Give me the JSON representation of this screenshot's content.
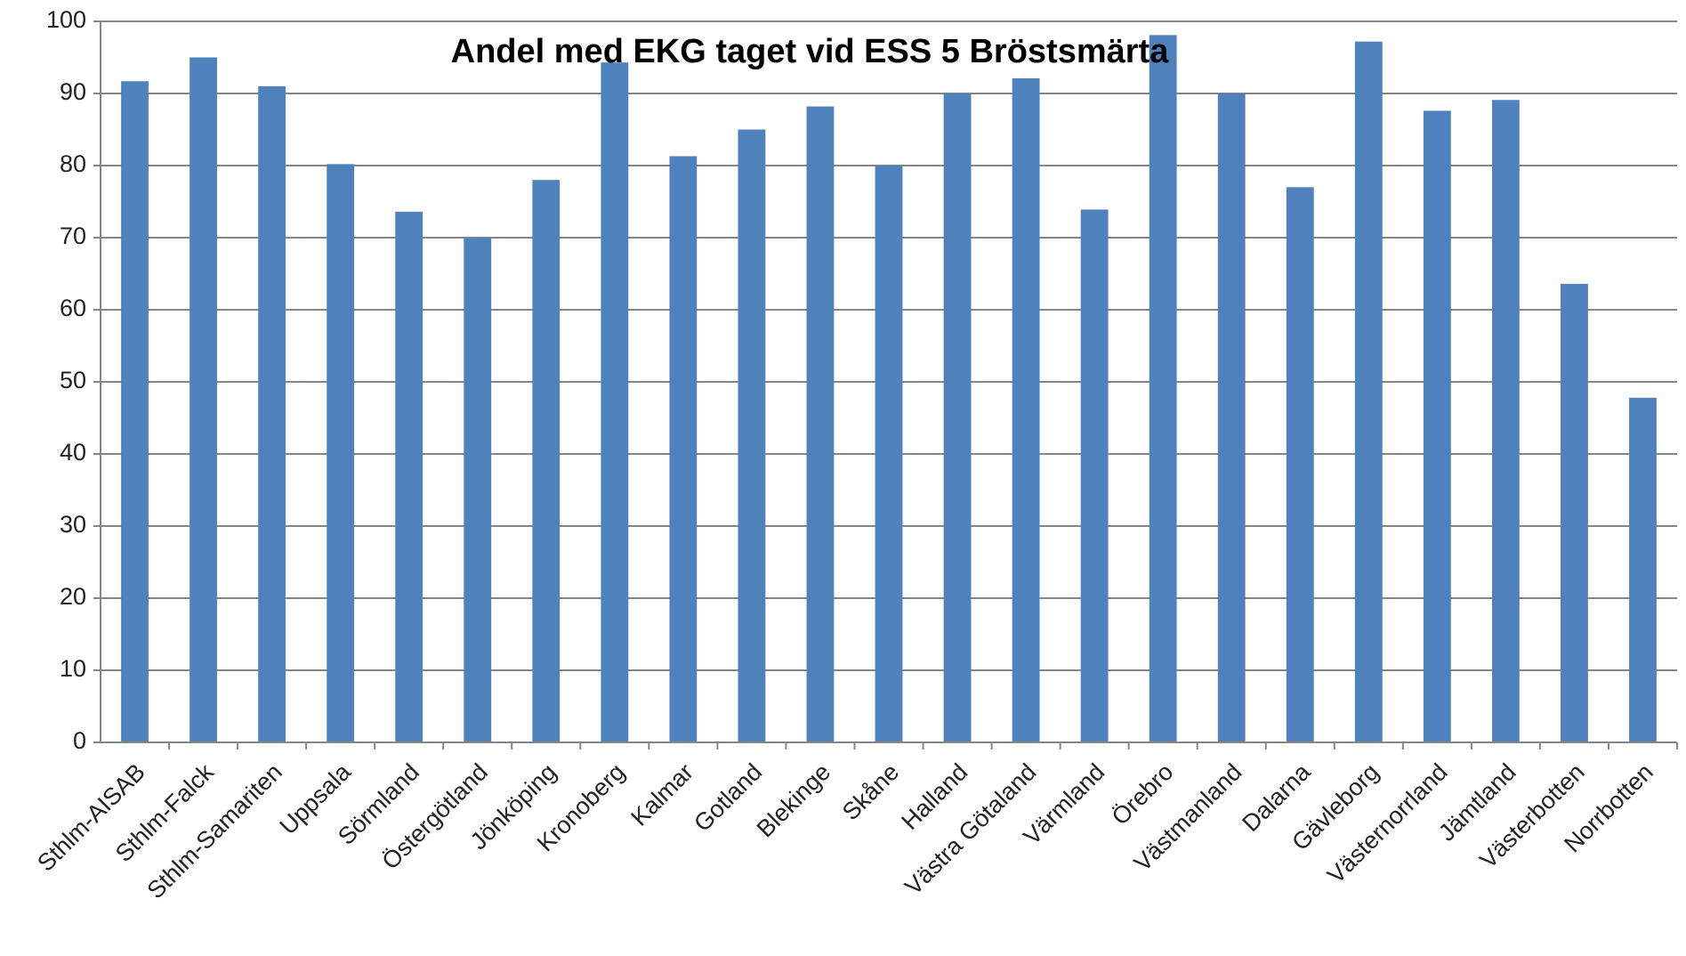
{
  "chart_data": {
    "type": "bar",
    "title": "Andel med EKG taget vid ESS 5 Bröstsmärta",
    "categories": [
      "Sthlm-AISAB",
      "Sthlm-Falck",
      "Sthlm-Samariten",
      "Uppsala",
      "Sörmland",
      "Östergötland",
      "Jönköping",
      "Kronoberg",
      "Kalmar",
      "Gotland",
      "Blekinge",
      "Skåne",
      "Halland",
      "Västra Götaland",
      "Värmland",
      "Örebro",
      "Västmanland",
      "Dalarna",
      "Gävleborg",
      "Västernorrland",
      "Jämtland",
      "Västerbotten",
      "Norrbotten"
    ],
    "values": [
      91.7,
      95,
      91,
      80.2,
      73.6,
      70,
      78,
      94.3,
      81.3,
      85,
      88.2,
      80,
      90,
      92.1,
      73.9,
      98.1,
      90,
      77,
      97.2,
      87.6,
      89.1,
      63.6,
      47.8
    ],
    "color": "#4f81bd",
    "ylim": [
      0,
      100
    ],
    "yticks": [
      0,
      10,
      20,
      30,
      40,
      50,
      60,
      70,
      80,
      90,
      100
    ],
    "grid": true
  }
}
